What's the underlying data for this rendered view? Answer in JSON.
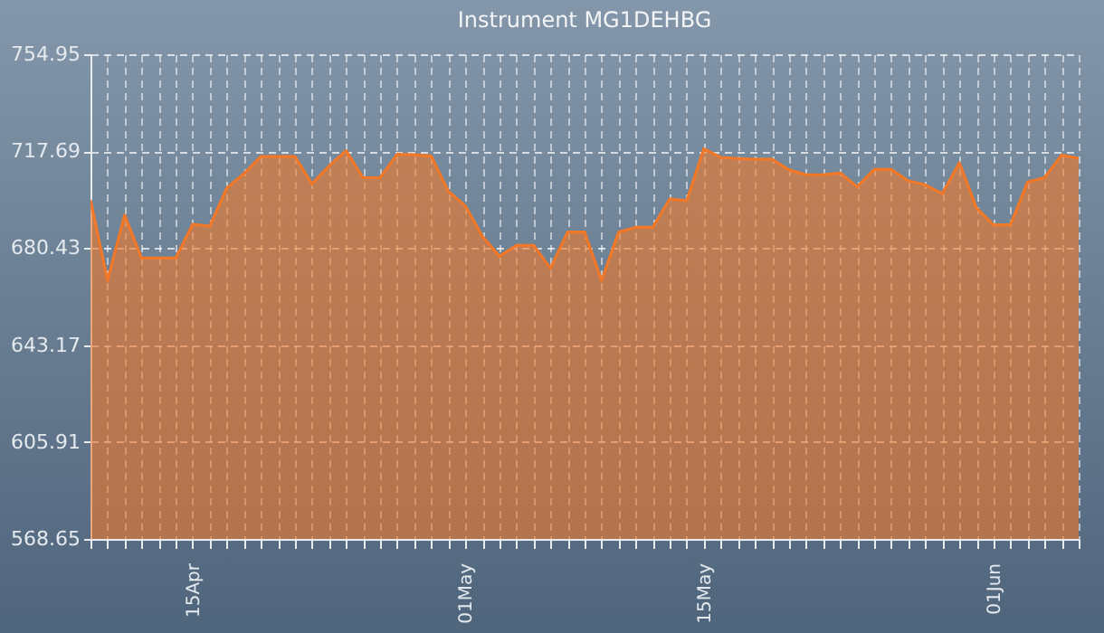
{
  "chart_data": {
    "type": "area",
    "title": "Instrument MG1DEHBG",
    "x": [
      "--04-09",
      "--04-10",
      "--04-11",
      "--04-12",
      "--04-13",
      "--04-14",
      "--04-15",
      "--04-16",
      "--04-17",
      "--04-18",
      "--04-19",
      "--04-20",
      "--04-21",
      "--04-22",
      "--04-23",
      "--04-24",
      "--04-25",
      "--04-26",
      "--04-27",
      "--04-28",
      "--04-29",
      "--04-30",
      "--05-01",
      "--05-02",
      "--05-03",
      "--05-04",
      "--05-05",
      "--05-06",
      "--05-07",
      "--05-08",
      "--05-09",
      "--05-10",
      "--05-11",
      "--05-12",
      "--05-13",
      "--05-14",
      "--05-15",
      "--05-16",
      "--05-17",
      "--05-18",
      "--05-19",
      "--05-20",
      "--05-21",
      "--05-22",
      "--05-23",
      "--05-24",
      "--05-25",
      "--05-26",
      "--05-27",
      "--05-28",
      "--05-29",
      "--05-30",
      "--05-31",
      "--06-01",
      "--06-02",
      "--06-03",
      "--06-04",
      "--06-05",
      "--06-06"
    ],
    "series": [
      {
        "color": "#f07828",
        "values": [
          698.9,
          668,
          693.1,
          676.6,
          676.6,
          676.6,
          689.6,
          688.9,
          703.5,
          709,
          715.6,
          715.6,
          715.6,
          705.1,
          712,
          717.9,
          707.5,
          707.5,
          716.5,
          716.3,
          715.8,
          702.3,
          696.6,
          685,
          677.3,
          681.5,
          681.5,
          672.7,
          686.6,
          686.6,
          668,
          686.6,
          688.4,
          688.4,
          699.3,
          698.7,
          718.6,
          715.3,
          714.9,
          714.6,
          714.6,
          710.5,
          708.6,
          708.6,
          709.3,
          704,
          710.7,
          710.7,
          706.3,
          704.7,
          701.4,
          713.2,
          695.9,
          689.4,
          689.4,
          705.8,
          707.5,
          716.2,
          714.9
        ]
      }
    ],
    "xlim": [
      "--04-09",
      "--06-06"
    ],
    "xticks": [
      {
        "value": "--04-09",
        "label": null
      },
      {
        "value": "--04-10",
        "label": null
      },
      {
        "value": "--04-11",
        "label": null
      },
      {
        "value": "--04-12",
        "label": null
      },
      {
        "value": "--04-13",
        "label": null
      },
      {
        "value": "--04-14",
        "label": null
      },
      {
        "value": "--04-15",
        "label": "15Apr"
      },
      {
        "value": "--04-16",
        "label": null
      },
      {
        "value": "--04-17",
        "label": null
      },
      {
        "value": "--04-18",
        "label": null
      },
      {
        "value": "--04-19",
        "label": null
      },
      {
        "value": "--04-20",
        "label": null
      },
      {
        "value": "--04-21",
        "label": null
      },
      {
        "value": "--04-22",
        "label": null
      },
      {
        "value": "--04-23",
        "label": null
      },
      {
        "value": "--04-24",
        "label": null
      },
      {
        "value": "--04-25",
        "label": null
      },
      {
        "value": "--04-26",
        "label": null
      },
      {
        "value": "--04-27",
        "label": null
      },
      {
        "value": "--04-28",
        "label": null
      },
      {
        "value": "--04-29",
        "label": null
      },
      {
        "value": "--04-30",
        "label": null
      },
      {
        "value": "--05-01",
        "label": "01May"
      },
      {
        "value": "--05-02",
        "label": null
      },
      {
        "value": "--05-03",
        "label": null
      },
      {
        "value": "--05-04",
        "label": null
      },
      {
        "value": "--05-05",
        "label": null
      },
      {
        "value": "--05-06",
        "label": null
      },
      {
        "value": "--05-07",
        "label": null
      },
      {
        "value": "--05-08",
        "label": null
      },
      {
        "value": "--05-09",
        "label": null
      },
      {
        "value": "--05-10",
        "label": null
      },
      {
        "value": "--05-11",
        "label": null
      },
      {
        "value": "--05-12",
        "label": null
      },
      {
        "value": "--05-13",
        "label": null
      },
      {
        "value": "--05-14",
        "label": null
      },
      {
        "value": "--05-15",
        "label": "15May"
      },
      {
        "value": "--05-16",
        "label": null
      },
      {
        "value": "--05-17",
        "label": null
      },
      {
        "value": "--05-18",
        "label": null
      },
      {
        "value": "--05-19",
        "label": null
      },
      {
        "value": "--05-20",
        "label": null
      },
      {
        "value": "--05-21",
        "label": null
      },
      {
        "value": "--05-22",
        "label": null
      },
      {
        "value": "--05-23",
        "label": null
      },
      {
        "value": "--05-24",
        "label": null
      },
      {
        "value": "--05-25",
        "label": null
      },
      {
        "value": "--05-26",
        "label": null
      },
      {
        "value": "--05-27",
        "label": null
      },
      {
        "value": "--05-28",
        "label": null
      },
      {
        "value": "--05-29",
        "label": null
      },
      {
        "value": "--05-30",
        "label": null
      },
      {
        "value": "--05-31",
        "label": null
      },
      {
        "value": "--06-01",
        "label": "01Jun"
      },
      {
        "value": "--06-02",
        "label": null
      },
      {
        "value": "--06-03",
        "label": null
      },
      {
        "value": "--06-04",
        "label": null
      },
      {
        "value": "--06-05",
        "label": null
      },
      {
        "value": "--06-06",
        "label": null
      }
    ],
    "ylim": [
      568.65,
      754.95
    ],
    "yticks": [
      568.65,
      605.91,
      643.17,
      680.43,
      717.69,
      754.95
    ],
    "grid": true
  }
}
